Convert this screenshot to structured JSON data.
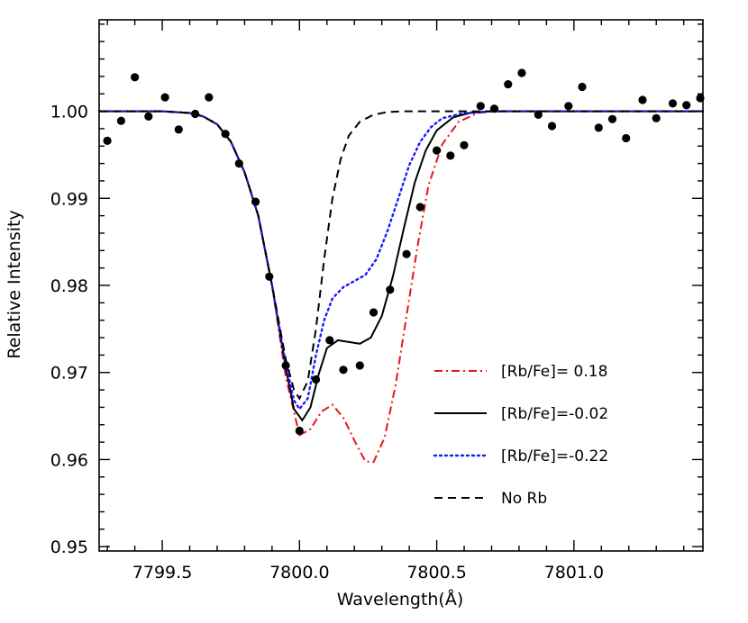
{
  "chart_data": {
    "type": "line",
    "title": "",
    "xlabel": "Wavelength(Å)",
    "ylabel": "Relative Intensity",
    "xlim": [
      7799.27,
      7801.47
    ],
    "ylim": [
      0.9495,
      1.0105
    ],
    "xticks": [
      7799.5,
      7800.0,
      7800.5,
      7801.0
    ],
    "xtick_labels": [
      "7799.5",
      "7800.0",
      "7800.5",
      "7801.0"
    ],
    "yticks": [
      0.95,
      0.96,
      0.97,
      0.98,
      0.99,
      1.0
    ],
    "ytick_labels": [
      "0.95",
      "0.96",
      "0.97",
      "0.98",
      "0.99",
      "1.00"
    ],
    "grid": false,
    "legend_position": "lower-right",
    "series": [
      {
        "name": "[Rb/Fe]= 0.18",
        "style": "dashdot",
        "color": "#e8141c",
        "x": [
          7799.27,
          7799.5,
          7799.6,
          7799.65,
          7799.7,
          7799.75,
          7799.8,
          7799.85,
          7799.9,
          7799.95,
          7800.0,
          7800.04,
          7800.08,
          7800.12,
          7800.16,
          7800.2,
          7800.24,
          7800.27,
          7800.31,
          7800.35,
          7800.39,
          7800.43,
          7800.47,
          7800.52,
          7800.58,
          7800.65,
          7800.7,
          7800.8,
          7801.0,
          7801.47
        ],
        "y": [
          1.0,
          1.0,
          0.9998,
          0.9994,
          0.9985,
          0.9965,
          0.993,
          0.988,
          0.98,
          0.9695,
          0.9628,
          0.9635,
          0.9655,
          0.9663,
          0.9648,
          0.9622,
          0.9598,
          0.9597,
          0.9625,
          0.9685,
          0.9765,
          0.9845,
          0.9915,
          0.9962,
          0.9988,
          0.9998,
          1.0,
          1.0,
          1.0,
          1.0
        ]
      },
      {
        "name": "[Rb/Fe]=-0.02",
        "style": "solid",
        "color": "#000000",
        "x": [
          7799.27,
          7799.5,
          7799.6,
          7799.65,
          7799.7,
          7799.75,
          7799.8,
          7799.85,
          7799.9,
          7799.95,
          7799.98,
          7800.01,
          7800.04,
          7800.07,
          7800.1,
          7800.14,
          7800.18,
          7800.22,
          7800.26,
          7800.3,
          7800.34,
          7800.38,
          7800.42,
          7800.46,
          7800.5,
          7800.56,
          7800.62,
          7800.7,
          7800.8,
          7801.0,
          7801.47
        ],
        "y": [
          1.0,
          1.0,
          0.9998,
          0.9994,
          0.9985,
          0.9965,
          0.993,
          0.988,
          0.98,
          0.9705,
          0.9658,
          0.9645,
          0.966,
          0.9698,
          0.9728,
          0.9737,
          0.9735,
          0.9733,
          0.974,
          0.9765,
          0.981,
          0.9865,
          0.9918,
          0.9955,
          0.9978,
          0.9993,
          0.9998,
          1.0,
          1.0,
          1.0,
          1.0
        ]
      },
      {
        "name": "[Rb/Fe]=-0.22",
        "style": "dotted",
        "color": "#1a1aff",
        "x": [
          7799.27,
          7799.5,
          7799.6,
          7799.65,
          7799.7,
          7799.75,
          7799.8,
          7799.85,
          7799.9,
          7799.95,
          7799.98,
          7800.0,
          7800.03,
          7800.06,
          7800.09,
          7800.12,
          7800.16,
          7800.2,
          7800.24,
          7800.28,
          7800.32,
          7800.36,
          7800.4,
          7800.44,
          7800.48,
          7800.52,
          7800.6,
          7800.7,
          7800.8,
          7801.0,
          7801.47
        ],
        "y": [
          1.0,
          1.0,
          0.9998,
          0.9994,
          0.9985,
          0.9965,
          0.993,
          0.988,
          0.98,
          0.971,
          0.9668,
          0.9658,
          0.967,
          0.972,
          0.976,
          0.9785,
          0.9798,
          0.9805,
          0.9812,
          0.983,
          0.9862,
          0.99,
          0.9938,
          0.9965,
          0.9982,
          0.9992,
          0.9998,
          1.0,
          1.0,
          1.0,
          1.0
        ]
      },
      {
        "name": "No Rb",
        "style": "dashed",
        "color": "#000000",
        "x": [
          7799.27,
          7799.5,
          7799.6,
          7799.65,
          7799.7,
          7799.75,
          7799.8,
          7799.85,
          7799.9,
          7799.95,
          7799.98,
          7800.0,
          7800.03,
          7800.06,
          7800.09,
          7800.12,
          7800.15,
          7800.18,
          7800.22,
          7800.27,
          7800.32,
          7800.38,
          7800.45,
          7800.55,
          7800.7,
          7801.0,
          7801.47
        ],
        "y": [
          1.0,
          1.0,
          0.9998,
          0.9994,
          0.9985,
          0.9965,
          0.993,
          0.988,
          0.98,
          0.9715,
          0.968,
          0.967,
          0.969,
          0.975,
          0.983,
          0.99,
          0.9945,
          0.9972,
          0.9988,
          0.9996,
          0.9999,
          1.0,
          1.0,
          1.0,
          1.0,
          1.0,
          1.0
        ]
      }
    ],
    "observed": {
      "marker": "filled-circle",
      "color": "#000000",
      "x": [
        7799.3,
        7799.35,
        7799.4,
        7799.45,
        7799.51,
        7799.56,
        7799.62,
        7799.67,
        7799.73,
        7799.78,
        7799.84,
        7799.89,
        7799.95,
        7800.0,
        7800.06,
        7800.11,
        7800.16,
        7800.22,
        7800.27,
        7800.33,
        7800.39,
        7800.44,
        7800.5,
        7800.55,
        7800.6,
        7800.66,
        7800.71,
        7800.76,
        7800.81,
        7800.87,
        7800.92,
        7800.98,
        7801.03,
        7801.09,
        7801.14,
        7801.19,
        7801.25,
        7801.3,
        7801.36,
        7801.41,
        7801.46
      ],
      "y": [
        0.9966,
        0.9989,
        1.0039,
        0.9994,
        1.0016,
        0.9979,
        0.9997,
        1.0016,
        0.9974,
        0.994,
        0.9896,
        0.981,
        0.9708,
        0.9633,
        0.9692,
        0.9737,
        0.9703,
        0.9708,
        0.9769,
        0.9795,
        0.9836,
        0.989,
        0.9955,
        0.9949,
        0.9961,
        1.0006,
        1.0003,
        1.0031,
        1.0044,
        0.9996,
        0.9983,
        1.0006,
        1.0028,
        0.9981,
        0.9991,
        0.9969,
        1.0013,
        0.9992,
        1.0009,
        1.0007,
        1.0015
      ]
    }
  }
}
